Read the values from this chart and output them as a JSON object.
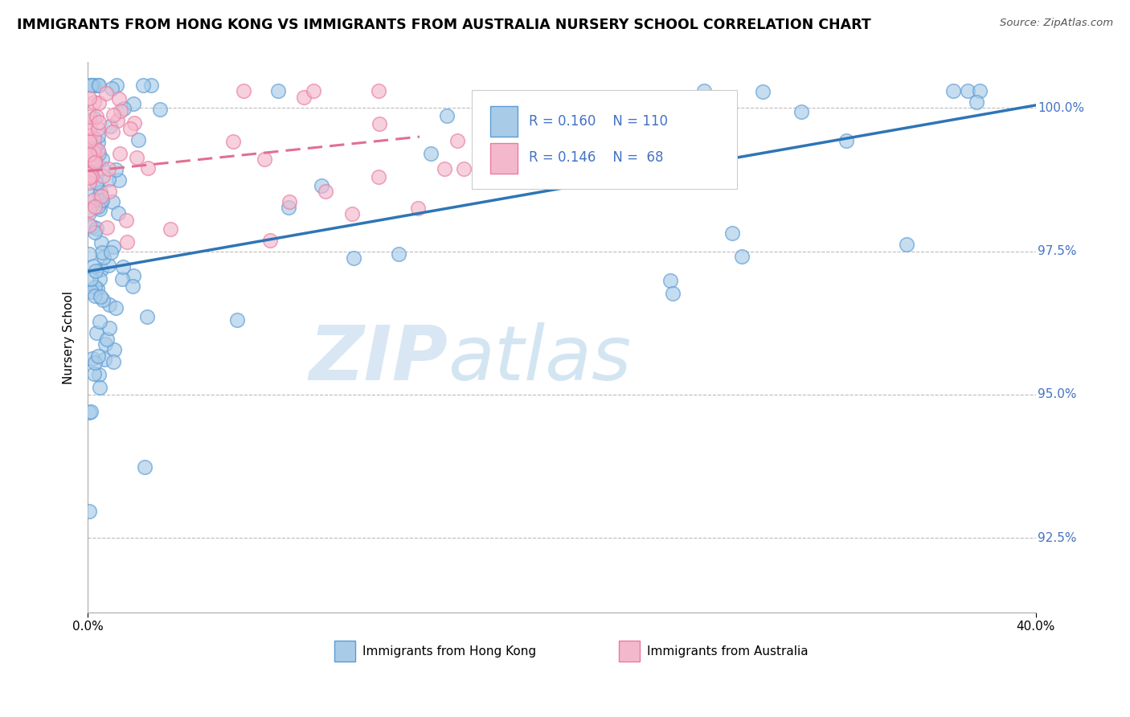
{
  "title": "IMMIGRANTS FROM HONG KONG VS IMMIGRANTS FROM AUSTRALIA NURSERY SCHOOL CORRELATION CHART",
  "source": "Source: ZipAtlas.com",
  "ylabel": "Nursery School",
  "yticks": [
    92.5,
    95.0,
    97.5,
    100.0
  ],
  "ytick_labels": [
    "92.5%",
    "95.0%",
    "97.5%",
    "100.0%"
  ],
  "xlim": [
    0.0,
    40.0
  ],
  "ylim": [
    91.2,
    100.8
  ],
  "legend_hk_r": "0.160",
  "legend_hk_n": "110",
  "legend_au_r": "0.146",
  "legend_au_n": "68",
  "legend_hk_label": "Immigrants from Hong Kong",
  "legend_au_label": "Immigrants from Australia",
  "color_hk": "#a8cce8",
  "color_au": "#f4b8cc",
  "color_hk_edge": "#5b9bd5",
  "color_au_edge": "#e87ca0",
  "color_hk_line": "#2e75b6",
  "color_au_line": "#e07090",
  "background_color": "#ffffff",
  "hk_line_x0": 0.0,
  "hk_line_y0": 97.15,
  "hk_line_x1": 40.0,
  "hk_line_y1": 100.05,
  "au_line_x0": 0.0,
  "au_line_y0": 98.9,
  "au_line_x1": 14.0,
  "au_line_y1": 99.5,
  "text_color_blue": "#4472c4",
  "legend_r_color": "#2e75b6",
  "legend_n_color": "#4472c4"
}
